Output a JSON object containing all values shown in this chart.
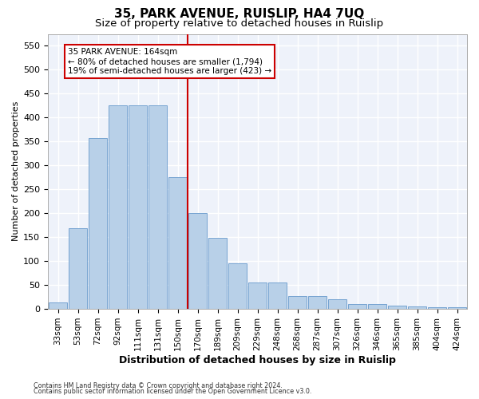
{
  "title_line1": "35, PARK AVENUE, RUISLIP, HA4 7UQ",
  "title_line2": "Size of property relative to detached houses in Ruislip",
  "xlabel": "Distribution of detached houses by size in Ruislip",
  "ylabel": "Number of detached properties",
  "categories": [
    "33sqm",
    "53sqm",
    "72sqm",
    "92sqm",
    "111sqm",
    "131sqm",
    "150sqm",
    "170sqm",
    "189sqm",
    "209sqm",
    "229sqm",
    "248sqm",
    "268sqm",
    "287sqm",
    "307sqm",
    "326sqm",
    "346sqm",
    "365sqm",
    "385sqm",
    "404sqm",
    "424sqm"
  ],
  "bar_heights": [
    13,
    168,
    358,
    425,
    425,
    425,
    275,
    200,
    148,
    96,
    55,
    55,
    27,
    27,
    20,
    11,
    11,
    7,
    5,
    3,
    4
  ],
  "bar_color": "#b8d0e8",
  "bar_edge_color": "#6699cc",
  "ylim": [
    0,
    575
  ],
  "yticks": [
    0,
    50,
    100,
    150,
    200,
    250,
    300,
    350,
    400,
    450,
    500,
    550
  ],
  "vline_x": 6.5,
  "vline_color": "#cc0000",
  "annotation_line1": "35 PARK AVENUE: 164sqm",
  "annotation_line2": "← 80% of detached houses are smaller (1,794)",
  "annotation_line3": "19% of semi-detached houses are larger (423) →",
  "annotation_box_color": "#ffffff",
  "annotation_box_edge": "#cc0000",
  "footer_line1": "Contains HM Land Registry data © Crown copyright and database right 2024.",
  "footer_line2": "Contains public sector information licensed under the Open Government Licence v3.0.",
  "background_color": "#eef2fa",
  "grid_color": "#ffffff",
  "title1_fontsize": 11,
  "title2_fontsize": 9.5,
  "bar_width": 0.9
}
